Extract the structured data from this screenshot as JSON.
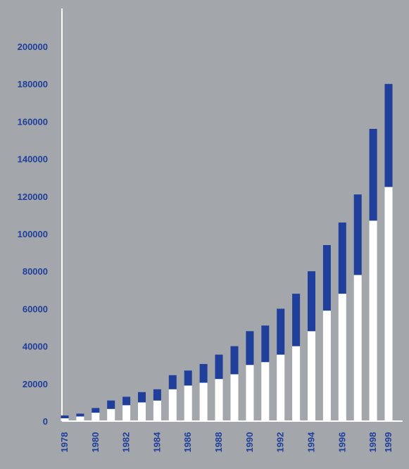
{
  "chart_data": {
    "type": "bar",
    "stacked": true,
    "title": "",
    "xlabel": "",
    "ylabel": "",
    "categories": [
      "1978",
      "1979",
      "1980",
      "1981",
      "1982",
      "1983",
      "1984",
      "1985",
      "1986",
      "1987",
      "1988",
      "1989",
      "1990",
      "1991",
      "1992",
      "1993",
      "1994",
      "1995",
      "1996",
      "1997",
      "1998",
      "1999"
    ],
    "x_tick_labels": [
      "1978",
      "1980",
      "1982",
      "1984",
      "1986",
      "1988",
      "1990",
      "1992",
      "1994",
      "1996",
      "1998",
      "1999"
    ],
    "series": [
      {
        "color": "#ffffff",
        "values": [
          1500,
          2500,
          4500,
          6500,
          8500,
          10000,
          11000,
          17000,
          19000,
          20500,
          22500,
          25000,
          30000,
          31500,
          35500,
          40000,
          48000,
          59000,
          68000,
          78000,
          107000,
          125000
        ]
      },
      {
        "color": "#1f3f9a",
        "values": [
          1500,
          1500,
          2500,
          4500,
          4500,
          5500,
          6000,
          7500,
          8000,
          10000,
          13000,
          15000,
          18000,
          19500,
          24500,
          28000,
          32000,
          35000,
          38000,
          43000,
          49000,
          55000
        ]
      }
    ],
    "ylim": [
      0,
      210000
    ],
    "yticks": [
      0,
      20000,
      40000,
      60000,
      80000,
      100000,
      120000,
      140000,
      160000,
      180000,
      200000
    ],
    "grid": false,
    "legend": "none",
    "axis_color": "#ffffff"
  }
}
